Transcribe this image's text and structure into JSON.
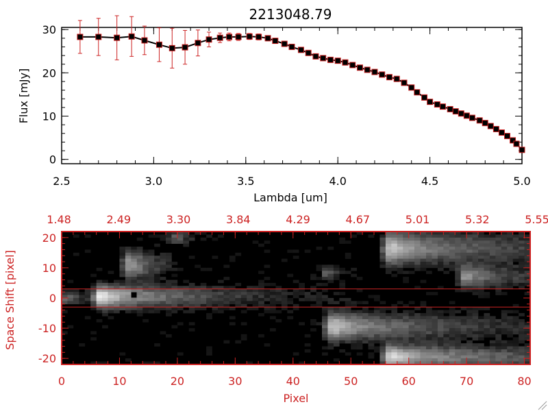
{
  "chart_data": [
    {
      "type": "line",
      "title": "2213048.79",
      "xlabel": "Lambda [um]",
      "ylabel": "Flux [mJy]",
      "xlim": [
        2.5,
        5.0
      ],
      "ylim": [
        -1,
        30.5
      ],
      "xticks": [
        "2.5",
        "3.0",
        "3.5",
        "4.0",
        "4.5",
        "5.0"
      ],
      "xtick_values": [
        2.5,
        3.0,
        3.5,
        4.0,
        4.5,
        5.0
      ],
      "yticks": [
        "0",
        "10",
        "20",
        "30"
      ],
      "ytick_values": [
        0,
        10,
        20,
        30
      ],
      "series": [
        {
          "name": "Flux",
          "x": [
            2.6,
            2.7,
            2.8,
            2.88,
            2.95,
            3.03,
            3.1,
            3.17,
            3.24,
            3.3,
            3.36,
            3.41,
            3.46,
            3.52,
            3.57,
            3.62,
            3.66,
            3.71,
            3.75,
            3.8,
            3.84,
            3.88,
            3.92,
            3.96,
            4.0,
            4.04,
            4.08,
            4.12,
            4.16,
            4.2,
            4.24,
            4.28,
            4.32,
            4.36,
            4.4,
            4.43,
            4.47,
            4.5,
            4.54,
            4.57,
            4.61,
            4.64,
            4.67,
            4.7,
            4.73,
            4.77,
            4.8,
            4.83,
            4.86,
            4.89,
            4.92,
            4.95,
            4.97,
            5.0
          ],
          "y": [
            28.3,
            28.3,
            28.1,
            28.4,
            27.5,
            26.5,
            25.7,
            25.9,
            26.9,
            27.7,
            28.1,
            28.3,
            28.3,
            28.4,
            28.3,
            28.0,
            27.4,
            26.7,
            26.0,
            25.3,
            24.6,
            23.8,
            23.4,
            23.0,
            22.8,
            22.4,
            21.8,
            21.2,
            20.7,
            20.2,
            19.6,
            19.0,
            18.6,
            17.7,
            16.6,
            15.5,
            14.3,
            13.3,
            12.7,
            12.2,
            11.6,
            11.1,
            10.6,
            10.1,
            9.6,
            9.0,
            8.4,
            7.7,
            7.0,
            6.2,
            5.4,
            4.4,
            3.6,
            2.2
          ],
          "yerr": [
            3.8,
            4.3,
            5.1,
            4.6,
            3.3,
            3.9,
            4.6,
            3.9,
            3.0,
            1.7,
            1.1,
            0.9,
            0.8,
            0.7,
            0.7,
            0.6,
            0.6,
            0.5,
            0.5,
            0.5,
            0.5,
            0.5,
            0.5,
            0.5,
            0.5,
            0.5,
            0.5,
            0.5,
            0.5,
            0.5,
            0.5,
            0.5,
            0.5,
            0.5,
            0.5,
            0.5,
            0.5,
            0.5,
            0.5,
            0.5,
            0.5,
            0.5,
            0.5,
            0.5,
            0.5,
            0.5,
            0.5,
            0.5,
            0.5,
            0.5,
            0.5,
            0.5,
            0.5,
            0.5
          ]
        }
      ],
      "colors": {
        "line": "#000000",
        "errorbar": "#cc2222"
      }
    },
    {
      "type": "heatmap",
      "xlabel": "Pixel",
      "ylabel": "Space Shift [pixel]",
      "xlim": [
        0,
        81
      ],
      "ylim": [
        -22,
        22
      ],
      "xticks": [
        "0",
        "10",
        "20",
        "30",
        "40",
        "50",
        "60",
        "70",
        "80"
      ],
      "xtick_values": [
        0,
        10,
        20,
        30,
        40,
        50,
        60,
        70,
        80
      ],
      "yticks": [
        "20",
        "10",
        "0",
        "-10",
        "-20"
      ],
      "ytick_values": [
        20,
        10,
        0,
        -10,
        -20
      ],
      "top_axis_labels": [
        "1.48",
        "2.49",
        "3.30",
        "3.84",
        "4.29",
        "4.67",
        "5.01",
        "5.32",
        "5.55"
      ],
      "aperture_lines": [
        3,
        -3
      ],
      "marker": {
        "x": 12.5,
        "y": 1
      },
      "blobs": [
        {
          "x0": 7,
          "x1": 50,
          "y": 0.5,
          "sigma_y": 2.5,
          "peak": 0.95,
          "decay": 0.06
        },
        {
          "x0": 12,
          "x1": 17,
          "y": 11,
          "sigma_y": 3,
          "peak": 0.6,
          "decay": 0.2
        },
        {
          "x0": 47,
          "x1": 81,
          "y": -9.5,
          "sigma_y": 3,
          "peak": 0.8,
          "decay": 0.05
        },
        {
          "x0": 57,
          "x1": 81,
          "y": 16.5,
          "sigma_y": 3.5,
          "peak": 0.8,
          "decay": 0.05
        },
        {
          "x0": 57,
          "x1": 81,
          "y": -19.5,
          "sigma_y": 2.5,
          "peak": 0.9,
          "decay": 0.04
        },
        {
          "x0": 70,
          "x1": 81,
          "y": 7,
          "sigma_y": 2.5,
          "peak": 0.55,
          "decay": 0.1
        },
        {
          "x0": 1,
          "x1": 7,
          "y": 0,
          "sigma_y": 1.5,
          "peak": 0.35,
          "decay": 0.3
        },
        {
          "x0": 46,
          "x1": 49,
          "y": 8,
          "sigma_y": 1.5,
          "peak": 0.3,
          "decay": 0.5
        },
        {
          "x0": 20,
          "x1": 24,
          "y": 20,
          "sigma_y": 1.5,
          "peak": 0.3,
          "decay": 0.4
        }
      ],
      "colors": {
        "axis": "#cc2222",
        "aperture": "#cc2222"
      }
    }
  ]
}
